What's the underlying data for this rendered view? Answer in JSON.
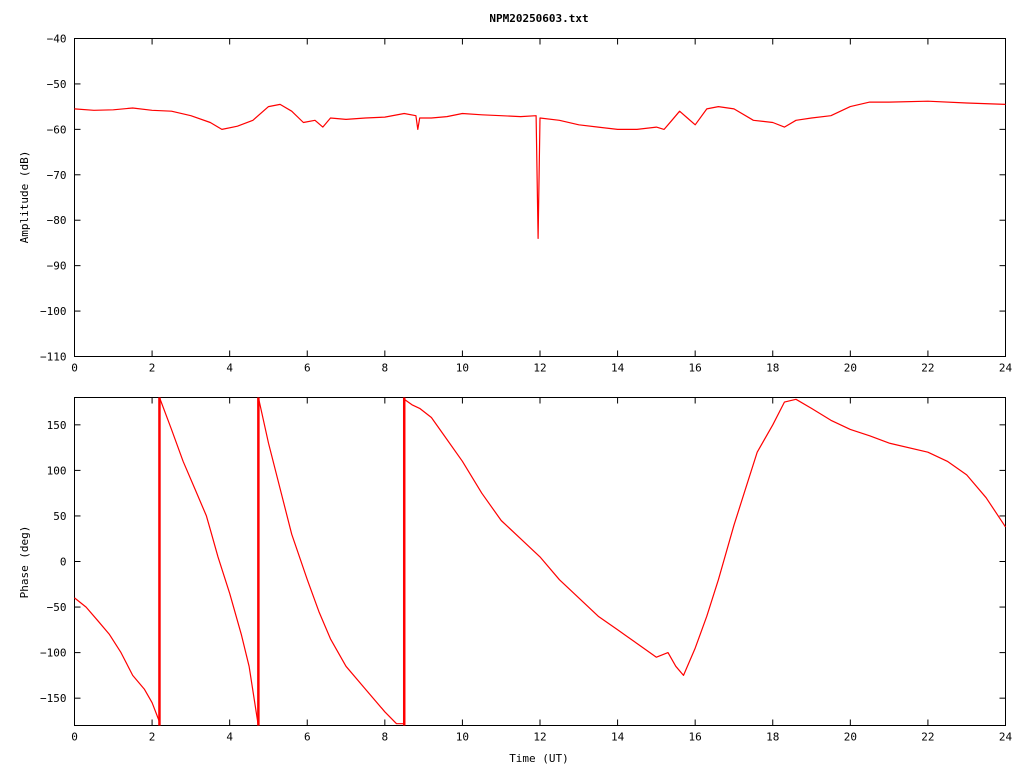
{
  "chart_data": {
    "title": "NPM20250603.txt",
    "series_color": "#ff0000",
    "grid": false,
    "panels": [
      {
        "id": "amplitude",
        "type": "line",
        "ylabel": "Amplitude (dB)",
        "xlim": [
          0,
          24
        ],
        "ylim": [
          -110,
          -40
        ],
        "xticks": [
          0,
          2,
          4,
          6,
          8,
          10,
          12,
          14,
          16,
          18,
          20,
          22,
          24
        ],
        "yticks": [
          -110,
          -100,
          -90,
          -80,
          -70,
          -60,
          -50,
          -40
        ],
        "xtick_labels": [
          "0",
          "2",
          "4",
          "6",
          "8",
          "10",
          "12",
          "14",
          "16",
          "18",
          "20",
          "22",
          "24"
        ],
        "ytick_labels": [
          "−110",
          "−100",
          "−90",
          "−80",
          "−70",
          "−60",
          "−50",
          "−40"
        ],
        "x": [
          0,
          0.5,
          1,
          1.5,
          2,
          2.5,
          3,
          3.5,
          3.8,
          4.2,
          4.6,
          5,
          5.3,
          5.6,
          5.9,
          6.2,
          6.4,
          6.6,
          7,
          7.5,
          8,
          8.5,
          8.8,
          8.85,
          8.9,
          9.2,
          9.6,
          10,
          10.5,
          11,
          11.5,
          11.9,
          11.95,
          12,
          12.5,
          13,
          13.5,
          14,
          14.5,
          15,
          15.2,
          15.4,
          15.6,
          15.8,
          16,
          16.3,
          16.6,
          17,
          17.5,
          18,
          18.3,
          18.6,
          19,
          19.5,
          20,
          20.5,
          21,
          22,
          23,
          24
        ],
        "y": [
          -55.5,
          -55.8,
          -55.7,
          -55.3,
          -55.8,
          -56.0,
          -57.0,
          -58.5,
          -60.0,
          -59.3,
          -58.0,
          -55.0,
          -54.5,
          -56.0,
          -58.5,
          -58.0,
          -59.5,
          -57.5,
          -57.8,
          -57.5,
          -57.3,
          -56.5,
          -57.0,
          -60.0,
          -57.5,
          -57.5,
          -57.2,
          -56.5,
          -56.8,
          -57.0,
          -57.2,
          -57.0,
          -84.0,
          -57.5,
          -58.0,
          -59.0,
          -59.5,
          -60.0,
          -60.0,
          -59.5,
          -60.0,
          -58.0,
          -56.0,
          -57.5,
          -59.0,
          -55.5,
          -55.0,
          -55.5,
          -58.0,
          -58.5,
          -59.5,
          -58.0,
          -57.5,
          -57.0,
          -55.0,
          -54.0,
          -54.0,
          -53.8,
          -54.2,
          -54.5
        ]
      },
      {
        "id": "phase",
        "type": "line",
        "ylabel": "Phase (deg)",
        "xlabel": "Time (UT)",
        "xlim": [
          0,
          24
        ],
        "ylim": [
          -180,
          180
        ],
        "xticks": [
          0,
          2,
          4,
          6,
          8,
          10,
          12,
          14,
          16,
          18,
          20,
          22,
          24
        ],
        "yticks": [
          -150,
          -100,
          -50,
          0,
          50,
          100,
          150
        ],
        "xtick_labels": [
          "0",
          "2",
          "4",
          "6",
          "8",
          "10",
          "12",
          "14",
          "16",
          "18",
          "20",
          "22",
          "24"
        ],
        "ytick_labels": [
          "−150",
          "−100",
          "−50",
          "0",
          "50",
          "100",
          "150"
        ],
        "x": [
          0,
          0.3,
          0.6,
          0.9,
          1.2,
          1.5,
          1.8,
          2.0,
          2.18,
          2.19,
          2.5,
          2.8,
          3.1,
          3.4,
          3.5,
          3.7,
          4.0,
          4.3,
          4.5,
          4.73,
          4.74,
          5.0,
          5.3,
          5.6,
          6.0,
          6.3,
          6.6,
          7.0,
          7.5,
          8.0,
          8.3,
          8.48,
          8.5,
          8.7,
          8.9,
          9.2,
          9.5,
          10.0,
          10.5,
          11.0,
          11.5,
          12.0,
          12.5,
          13.0,
          13.5,
          14.0,
          14.5,
          15.0,
          15.3,
          15.5,
          15.7,
          16.0,
          16.3,
          16.6,
          17.0,
          17.3,
          17.6,
          18.0,
          18.3,
          18.6,
          19.0,
          19.5,
          20.0,
          20.5,
          21.0,
          22.0,
          22.5,
          23.0,
          23.5,
          24.0
        ],
        "y": [
          -40,
          -50,
          -65,
          -80,
          -100,
          -125,
          -140,
          -155,
          -175,
          180,
          145,
          110,
          80,
          50,
          35,
          5,
          -35,
          -80,
          -115,
          -178,
          180,
          130,
          80,
          30,
          -20,
          -55,
          -85,
          -115,
          -140,
          -165,
          -178,
          -178,
          178,
          172,
          168,
          158,
          140,
          110,
          75,
          45,
          25,
          5,
          -20,
          -40,
          -60,
          -75,
          -90,
          -105,
          -100,
          -115,
          -125,
          -95,
          -60,
          -20,
          40,
          80,
          120,
          150,
          175,
          178,
          168,
          155,
          145,
          138,
          130,
          120,
          110,
          95,
          70,
          38
        ]
      }
    ]
  }
}
